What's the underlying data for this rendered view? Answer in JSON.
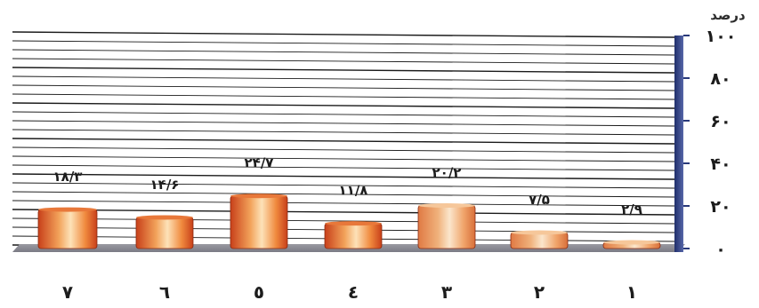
{
  "chart_data": {
    "type": "bar",
    "title": "",
    "ylabel": "درصد",
    "xlabel": "",
    "ylim": [
      0,
      100
    ],
    "y_ticks": [
      {
        "value": 0,
        "label": "۰"
      },
      {
        "value": 20,
        "label": "۲۰"
      },
      {
        "value": 40,
        "label": "۴۰"
      },
      {
        "value": 60,
        "label": "۶۰"
      },
      {
        "value": 80,
        "label": "۸۰"
      },
      {
        "value": 100,
        "label": "۱۰۰"
      }
    ],
    "categories": [
      "۷",
      "٦",
      "٥",
      "٤",
      "۳",
      "۲",
      "۱"
    ],
    "values": [
      18.3,
      14.6,
      24.7,
      11.8,
      20.2,
      7.5,
      2.9
    ],
    "value_labels": [
      "۱۸/۳",
      "۱۴/۶",
      "۲۴/۷",
      "۱۱/۸",
      "۲۰/۲",
      "۷/۵",
      "۲/۹"
    ],
    "grid": true,
    "legend": "none",
    "colors": {
      "bar_dark": "#c8401a",
      "bar_mid": "#f2a25a",
      "bar_light": "#fde2b8",
      "bar_pale_light": "#fbe6cc",
      "bar_pale_mid": "#f0b27c",
      "floor": "#8e8e96",
      "axis": "#2a3a7a",
      "grid": "#000000"
    }
  }
}
